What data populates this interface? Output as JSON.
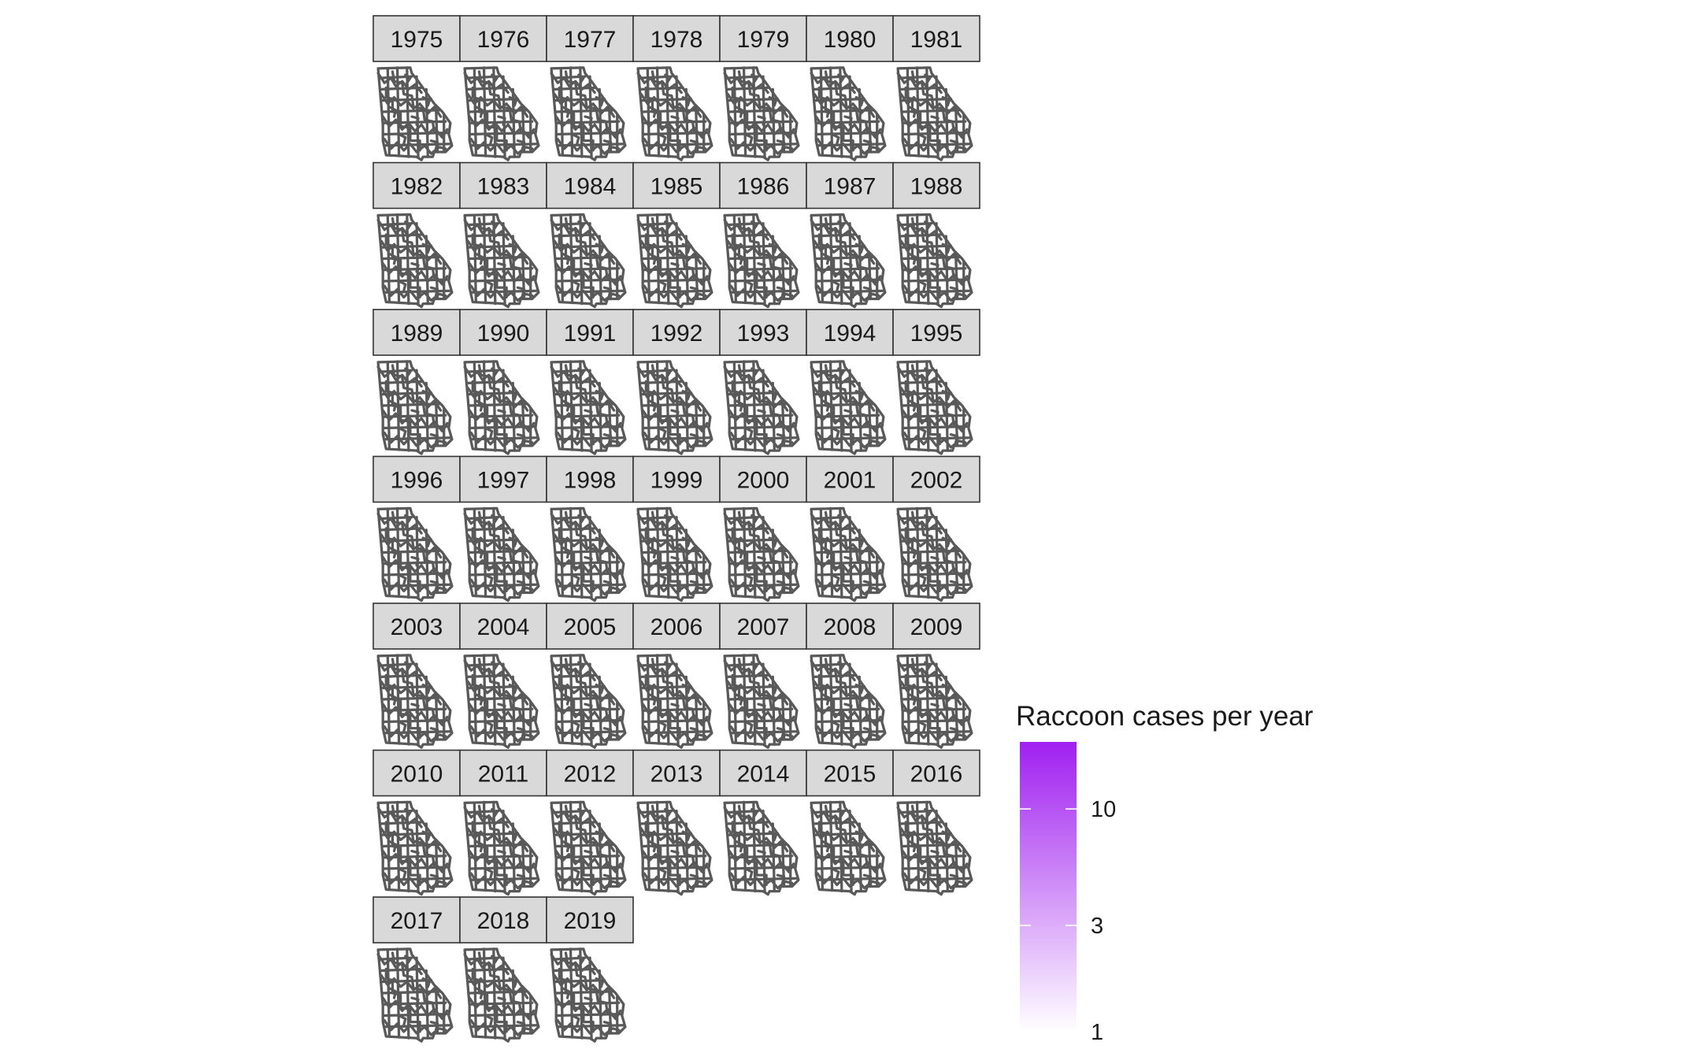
{
  "chart_data": {
    "type": "choropleth-facets",
    "region": "Georgia counties",
    "facets": [
      "1975",
      "1976",
      "1977",
      "1978",
      "1979",
      "1980",
      "1981",
      "1982",
      "1983",
      "1984",
      "1985",
      "1986",
      "1987",
      "1988",
      "1989",
      "1990",
      "1991",
      "1992",
      "1993",
      "1994",
      "1995",
      "1996",
      "1997",
      "1998",
      "1999",
      "2000",
      "2001",
      "2002",
      "2003",
      "2004",
      "2005",
      "2006",
      "2007",
      "2008",
      "2009",
      "2010",
      "2011",
      "2012",
      "2013",
      "2014",
      "2015",
      "2016",
      "2017",
      "2018",
      "2019"
    ],
    "facet_columns": 7,
    "legend": {
      "title": "Raccoon cases per year",
      "scale": "log",
      "breaks": [
        1,
        3,
        10
      ],
      "break_labels": [
        "1",
        "3",
        "10"
      ],
      "range": [
        1,
        20
      ],
      "low_color": "#ffffff",
      "high_color": "#a020f0"
    },
    "county_border_color": "#595959",
    "strip_fill": "#d9d9d9",
    "strip_border": "#333333"
  }
}
